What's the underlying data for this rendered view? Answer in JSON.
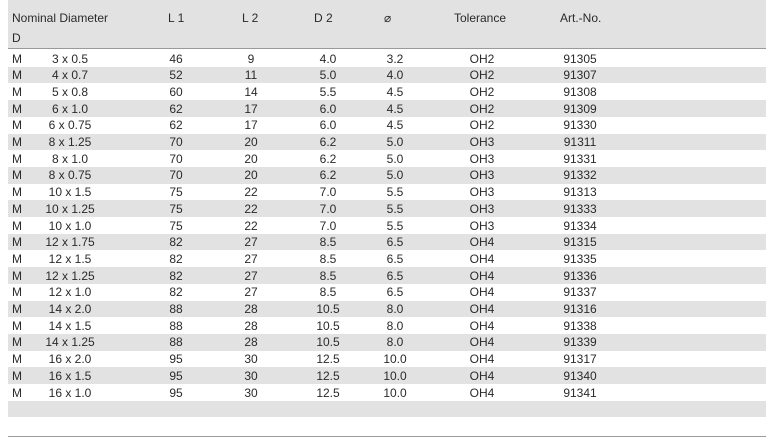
{
  "table": {
    "header": [
      "Nominal Diameter",
      "L 1",
      "L 2",
      "D 2",
      "⌀",
      "Tolerance",
      "Art.-No."
    ],
    "subheader": "D",
    "rows": [
      [
        "M",
        "3 x 0.5",
        "46",
        "9",
        "4.0",
        "3.2",
        "OH2",
        "91305"
      ],
      [
        "M",
        "4 x 0.7",
        "52",
        "11",
        "5.0",
        "4.0",
        "OH2",
        "91307"
      ],
      [
        "M",
        "5 x 0.8",
        "60",
        "14",
        "5.5",
        "4.5",
        "OH2",
        "91308"
      ],
      [
        "M",
        "6 x 1.0",
        "62",
        "17",
        "6.0",
        "4.5",
        "OH2",
        "91309"
      ],
      [
        "M",
        "6 x 0.75",
        "62",
        "17",
        "6.0",
        "4.5",
        "OH2",
        "91330"
      ],
      [
        "M",
        "8 x 1.25",
        "70",
        "20",
        "6.2",
        "5.0",
        "OH3",
        "91311"
      ],
      [
        "M",
        "8 x 1.0",
        "70",
        "20",
        "6.2",
        "5.0",
        "OH3",
        "91331"
      ],
      [
        "M",
        "8 x 0.75",
        "70",
        "20",
        "6.2",
        "5.0",
        "OH3",
        "91332"
      ],
      [
        "M",
        "10 x 1.5",
        "75",
        "22",
        "7.0",
        "5.5",
        "OH3",
        "91313"
      ],
      [
        "M",
        "10 x 1.25",
        "75",
        "22",
        "7.0",
        "5.5",
        "OH3",
        "91333"
      ],
      [
        "M",
        "10 x 1.0",
        "75",
        "22",
        "7.0",
        "5.5",
        "OH3",
        "91334"
      ],
      [
        "M",
        "12 x 1.75",
        "82",
        "27",
        "8.5",
        "6.5",
        "OH4",
        "91315"
      ],
      [
        "M",
        "12 x 1.5",
        "82",
        "27",
        "8.5",
        "6.5",
        "OH4",
        "91335"
      ],
      [
        "M",
        "12 x 1.25",
        "82",
        "27",
        "8.5",
        "6.5",
        "OH4",
        "91336"
      ],
      [
        "M",
        "12 x 1.0",
        "82",
        "27",
        "8.5",
        "6.5",
        "OH4",
        "91337"
      ],
      [
        "M",
        "14 x 2.0",
        "88",
        "28",
        "10.5",
        "8.0",
        "OH4",
        "91316"
      ],
      [
        "M",
        "14 x 1.5",
        "88",
        "28",
        "10.5",
        "8.0",
        "OH4",
        "91338"
      ],
      [
        "M",
        "14 x 1.25",
        "88",
        "28",
        "10.5",
        "8.0",
        "OH4",
        "91339"
      ],
      [
        "M",
        "16 x 2.0",
        "95",
        "30",
        "12.5",
        "10.0",
        "OH4",
        "91317"
      ],
      [
        "M",
        "16 x 1.5",
        "95",
        "30",
        "12.5",
        "10.0",
        "OH4",
        "91340"
      ],
      [
        "M",
        "16 x 1.0",
        "95",
        "30",
        "12.5",
        "10.0",
        "OH4",
        "91341"
      ]
    ]
  }
}
